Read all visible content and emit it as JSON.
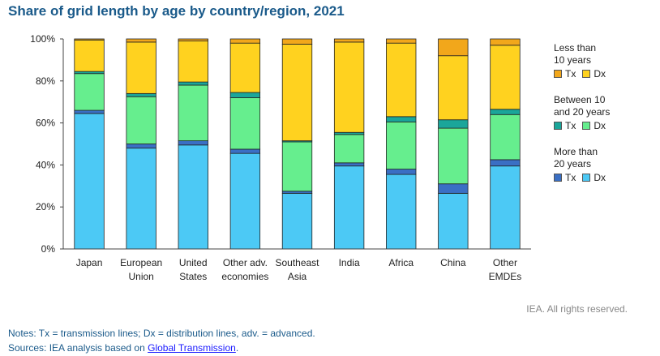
{
  "title": "Share of grid length by age by country/region, 2021",
  "chart_data": {
    "type": "bar",
    "stacked": true,
    "title": "Share of grid length by age by country/region, 2021",
    "categories": [
      [
        "Japan"
      ],
      [
        "European",
        "Union"
      ],
      [
        "United",
        "States"
      ],
      [
        "Other adv.",
        "economies"
      ],
      [
        "Southeast",
        "Asia"
      ],
      [
        "India"
      ],
      [
        "Africa"
      ],
      [
        "China"
      ],
      [
        "Other",
        "EMDEs"
      ]
    ],
    "ylim": [
      0,
      100
    ],
    "yticks": [
      0,
      20,
      40,
      60,
      80,
      100
    ],
    "ytick_suffix": "%",
    "series": [
      {
        "name": "More than 20 years Dx",
        "color": "#4cc9f5",
        "values": [
          64.5,
          48,
          49.5,
          45.5,
          26.5,
          39.5,
          35.5,
          26.5,
          39.5
        ]
      },
      {
        "name": "More than 20 years Tx",
        "color": "#3a6fc4",
        "values": [
          1.5,
          2,
          2,
          2,
          1,
          1.5,
          2.5,
          4.5,
          3
        ]
      },
      {
        "name": "Between 10 and 20 years Dx",
        "color": "#66ee8e",
        "values": [
          17.5,
          22.5,
          26.5,
          24.5,
          23.5,
          13.5,
          22.5,
          26.5,
          21.5
        ]
      },
      {
        "name": "Between 10 and 20 years Tx",
        "color": "#1aa69a",
        "values": [
          1,
          1.5,
          1.5,
          2.5,
          0.5,
          1,
          2.5,
          4,
          2.5
        ]
      },
      {
        "name": "Less than 10 years Dx",
        "color": "#ffd21f",
        "values": [
          15,
          24.5,
          19.5,
          23.5,
          46,
          43,
          35,
          30.5,
          30.5
        ]
      },
      {
        "name": "Less than 10 years Tx",
        "color": "#f2a71b",
        "values": [
          0.5,
          1.5,
          1,
          2,
          2.5,
          1.5,
          2,
          8,
          3
        ]
      }
    ]
  },
  "legend": {
    "groups": [
      {
        "heading": [
          "Less than",
          "10 years"
        ],
        "tx_label": "Tx",
        "dx_label": "Dx",
        "tx_color": "#f2a71b",
        "dx_color": "#ffd21f"
      },
      {
        "heading": [
          "Between 10",
          "and 20 years"
        ],
        "tx_label": "Tx",
        "dx_label": "Dx",
        "tx_color": "#1aa69a",
        "dx_color": "#66ee8e"
      },
      {
        "heading": [
          "More than",
          "20 years"
        ],
        "tx_label": "Tx",
        "dx_label": "Dx",
        "tx_color": "#3a6fc4",
        "dx_color": "#4cc9f5"
      }
    ]
  },
  "rights": "IEA. All rights reserved.",
  "notes": {
    "line1": "Notes: Tx = transmission lines; Dx = distribution lines, adv. = advanced.",
    "line2_prefix": "Sources: IEA analysis based on ",
    "line2_link": "Global Transmission",
    "line2_suffix": "."
  }
}
